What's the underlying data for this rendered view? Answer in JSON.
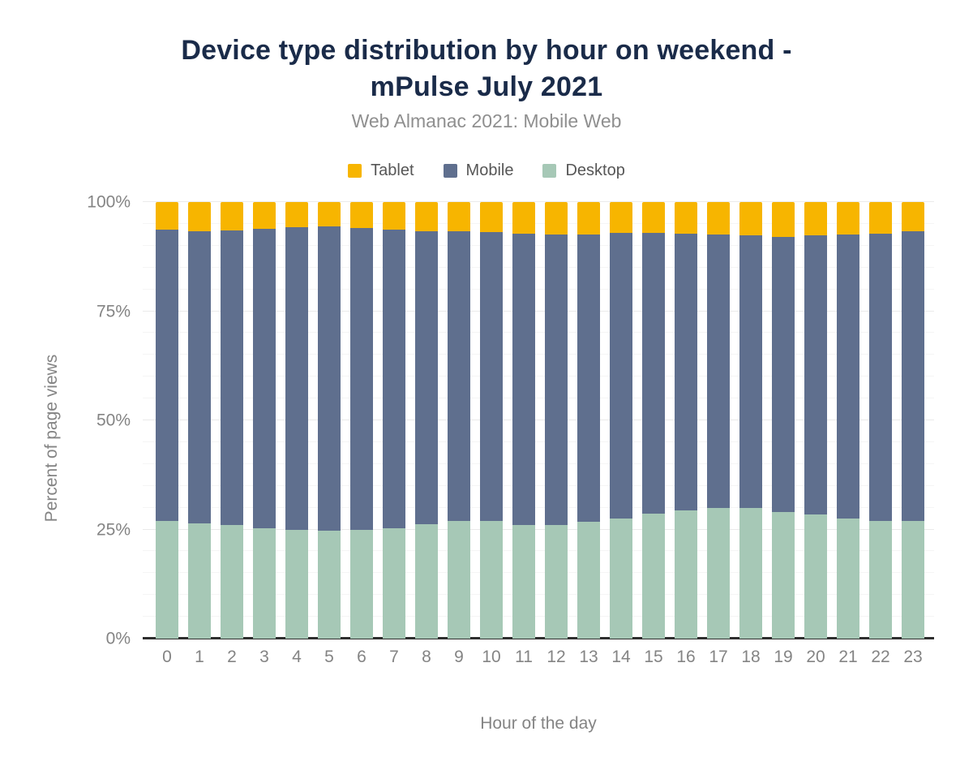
{
  "header": {
    "title": "Device type distribution by hour on weekend -\nmPulse July 2021",
    "subtitle": "Web Almanac 2021: Mobile Web"
  },
  "chart_data": {
    "type": "bar",
    "stacked": true,
    "percent_stacked": true,
    "title": "Device type distribution by hour on weekend - mPulse July 2021",
    "subtitle": "Web Almanac 2021: Mobile Web",
    "xlabel": "Hour of the day",
    "ylabel": "Percent of page views",
    "categories": [
      "0",
      "1",
      "2",
      "3",
      "4",
      "5",
      "6",
      "7",
      "8",
      "9",
      "10",
      "11",
      "12",
      "13",
      "14",
      "15",
      "16",
      "17",
      "18",
      "19",
      "20",
      "21",
      "22",
      "23"
    ],
    "series": [
      {
        "name": "Desktop",
        "color": "#a6c8b6",
        "values": [
          27.0,
          26.4,
          26.1,
          25.3,
          24.9,
          24.7,
          24.9,
          25.2,
          26.2,
          27.0,
          26.9,
          26.1,
          26.1,
          26.7,
          27.5,
          28.6,
          29.3,
          29.9,
          29.9,
          29.0,
          28.4,
          27.6,
          27.0,
          27.0
        ]
      },
      {
        "name": "Mobile",
        "color": "#5f6f8e",
        "values": [
          66.6,
          66.9,
          67.4,
          68.6,
          69.4,
          69.7,
          69.1,
          68.5,
          67.1,
          66.3,
          66.2,
          66.7,
          66.5,
          65.9,
          65.5,
          64.3,
          63.4,
          62.7,
          62.5,
          63.1,
          63.9,
          65.0,
          65.8,
          66.3
        ]
      },
      {
        "name": "Tablet",
        "color": "#f7b500",
        "values": [
          6.4,
          6.7,
          6.5,
          6.1,
          5.7,
          5.6,
          6.0,
          6.3,
          6.7,
          6.7,
          6.9,
          7.2,
          7.4,
          7.4,
          7.0,
          7.1,
          7.3,
          7.4,
          7.6,
          7.9,
          7.7,
          7.4,
          7.2,
          6.7
        ]
      }
    ],
    "legend": {
      "position": "top",
      "order": [
        "Tablet",
        "Mobile",
        "Desktop"
      ]
    },
    "ylim": [
      0,
      100
    ],
    "yticks_labeled": [
      0,
      25,
      50,
      75,
      100
    ],
    "ytick_suffix": "%",
    "grid": true,
    "grid_step": 5
  },
  "colors": {
    "title_text": "#1a2b49",
    "subtitle_text": "#8f8f8f",
    "axis_text": "#848484",
    "legend_text": "#565656",
    "grid_minor": "#f5f5f5",
    "grid_major": "#eaeaea",
    "axis_line": "#2e2e2e",
    "background": "#ffffff"
  }
}
